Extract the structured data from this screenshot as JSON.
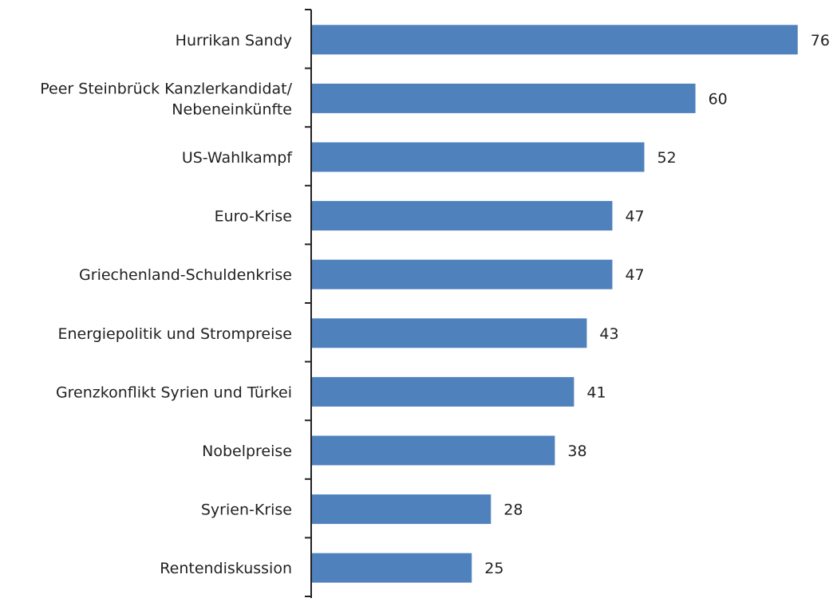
{
  "chart_data": {
    "type": "bar",
    "orientation": "horizontal",
    "categories": [
      "Hurrikan Sandy",
      "Peer Steinbrück Kanzlerkandidat/ Nebeneinkünfte",
      "US-Wahlkampf",
      "Euro-Krise",
      "Griechenland-Schuldenkrise",
      "Energiepolitik und Strompreise",
      "Grenzkonflikt Syrien und Türkei",
      "Nobelpreise",
      "Syrien-Krise",
      "Rentendiskussion"
    ],
    "category_lines": [
      [
        "Hurrikan Sandy"
      ],
      [
        "Peer Steinbrück Kanzlerkandidat/",
        "Nebeneinkünfte"
      ],
      [
        "US-Wahlkampf"
      ],
      [
        "Euro-Krise"
      ],
      [
        "Griechenland-Schuldenkrise"
      ],
      [
        "Energiepolitik und Strompreise"
      ],
      [
        "Grenzkonflikt Syrien und Türkei"
      ],
      [
        "Nobelpreise"
      ],
      [
        "Syrien-Krise"
      ],
      [
        "Rentendiskussion"
      ]
    ],
    "values": [
      76,
      60,
      52,
      47,
      47,
      43,
      41,
      38,
      28,
      25
    ],
    "value_labels": [
      "76",
      "60",
      "52",
      "47",
      "47",
      "43",
      "41",
      "38",
      "28",
      "25"
    ],
    "xlim": [
      0,
      76
    ],
    "grid": false,
    "legend": "none",
    "bar_color": "#4f81bd"
  }
}
